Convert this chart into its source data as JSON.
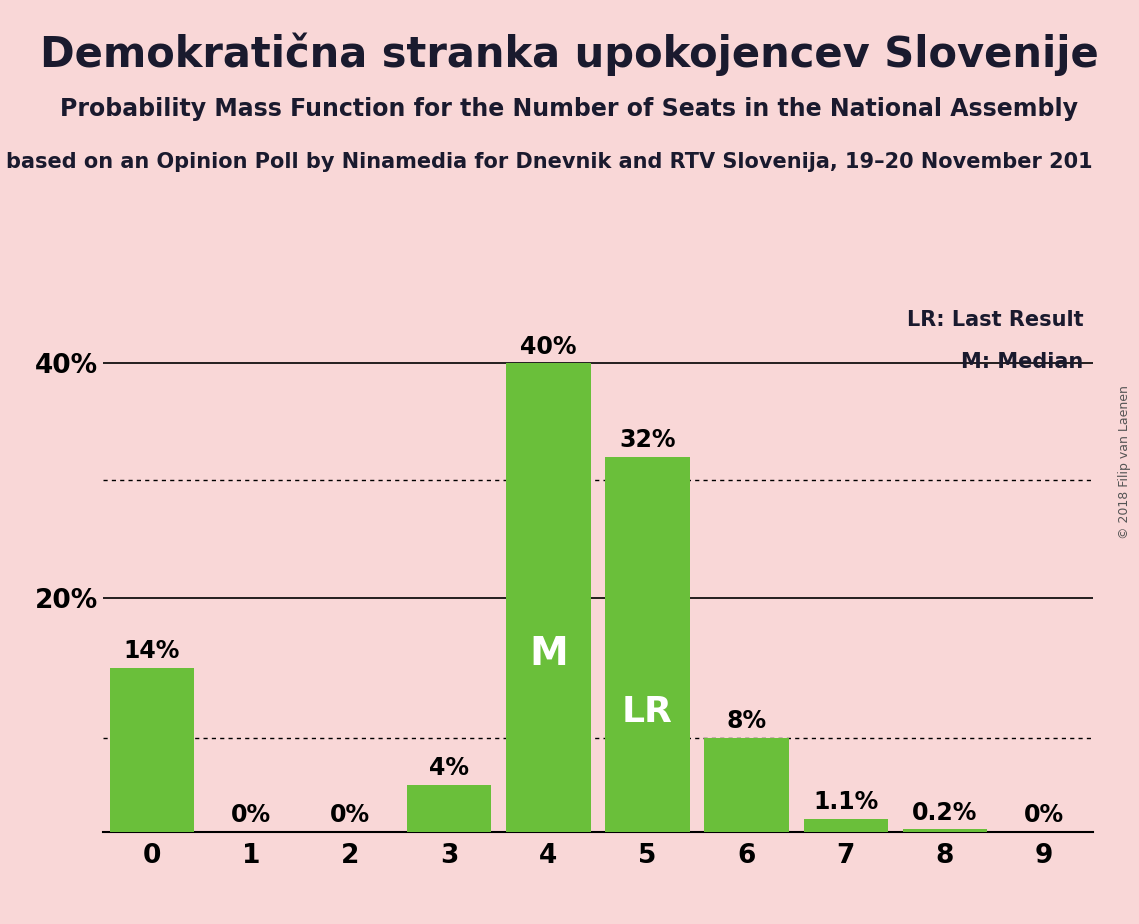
{
  "title": "Demokratična stranka upokojencev Slovenije",
  "subtitle": "Probability Mass Function for the Number of Seats in the National Assembly",
  "subtitle2": "based on an Opinion Poll by Ninamedia for Dnevnik and RTV Slovenija, 19–20 November 201",
  "copyright": "© 2018 Filip van Laenen",
  "categories": [
    0,
    1,
    2,
    3,
    4,
    5,
    6,
    7,
    8,
    9
  ],
  "values": [
    0.14,
    0.0,
    0.0,
    0.04,
    0.4,
    0.32,
    0.08,
    0.011,
    0.002,
    0.0
  ],
  "labels": [
    "14%",
    "0%",
    "0%",
    "4%",
    "40%",
    "32%",
    "8%",
    "1.1%",
    "0.2%",
    "0%"
  ],
  "bar_color": "#6abf3a",
  "background_color": "#f9d7d7",
  "median": 4,
  "last_result": 5,
  "ylim": [
    0,
    0.45
  ],
  "hline_solid": [
    0.2,
    0.4
  ],
  "hline_dotted": [
    0.3,
    0.08
  ],
  "title_fontsize": 30,
  "subtitle_fontsize": 17,
  "subtitle2_fontsize": 15,
  "label_fontsize": 17,
  "axis_fontsize": 19,
  "annotation_fontsize": 24,
  "legend_fontsize": 15
}
